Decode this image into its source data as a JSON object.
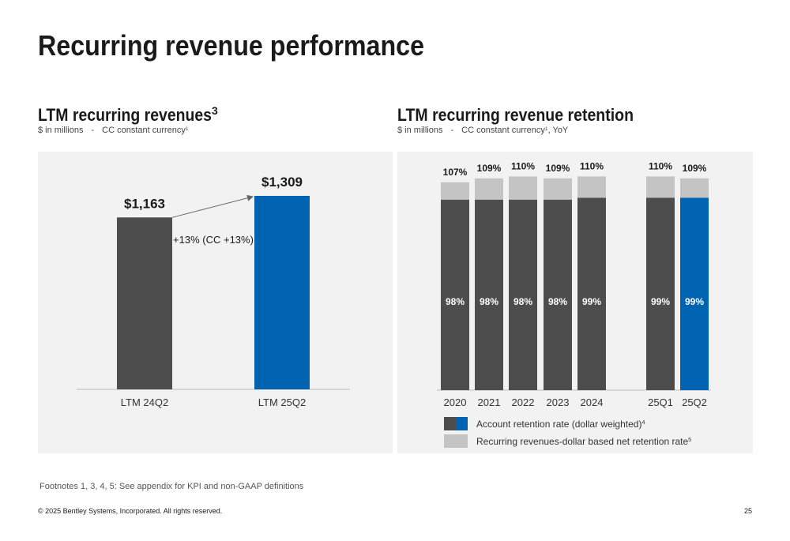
{
  "title": "Recurring revenue performance",
  "chart_data": [
    {
      "type": "bar",
      "title": "LTM recurring revenues",
      "title_superscript": "3",
      "subtitle": [
        "$ in millions",
        "-",
        "CC constant currency"
      ],
      "subtitle_superscript": "1",
      "categories": [
        "LTM 24Q2",
        "LTM 25Q2"
      ],
      "values": [
        1163,
        1309
      ],
      "value_labels": [
        "$1,163",
        "$1,309"
      ],
      "colors": [
        "#4d4d4d",
        "#0063b1"
      ],
      "annotation": "+13% (CC +13%)"
    },
    {
      "type": "bar",
      "title": "LTM recurring revenue retention",
      "subtitle": [
        "$ in millions",
        "-",
        "CC constant currency"
      ],
      "subtitle_superscript": "1",
      "subtitle_suffix": ", YoY",
      "categories": [
        "2020",
        "2021",
        "2022",
        "2023",
        "2024",
        "25Q1",
        "25Q2"
      ],
      "series": [
        {
          "name": "Account retention rate (dollar weighted)",
          "name_superscript": "4",
          "colors": [
            "#4d4d4d",
            "#4d4d4d",
            "#4d4d4d",
            "#4d4d4d",
            "#4d4d4d",
            "#4d4d4d",
            "#0063b1"
          ],
          "values": [
            98,
            98,
            98,
            98,
            99,
            99,
            99
          ],
          "value_labels": [
            "98%",
            "98%",
            "98%",
            "98%",
            "99%",
            "99%",
            "99%"
          ]
        },
        {
          "name": "Recurring revenues-dollar based net retention rate",
          "name_superscript": "5",
          "color": "#c4c4c4",
          "values": [
            107,
            109,
            110,
            109,
            110,
            110,
            109
          ],
          "value_labels": [
            "107%",
            "109%",
            "110%",
            "109%",
            "110%",
            "110%",
            "109%"
          ]
        }
      ]
    }
  ],
  "footnote": "Footnotes 1, 3, 4, 5: See appendix for KPI and non-GAAP definitions",
  "copyright": "© 2025 Bentley Systems, Incorporated. All rights reserved.",
  "page_number": "25"
}
